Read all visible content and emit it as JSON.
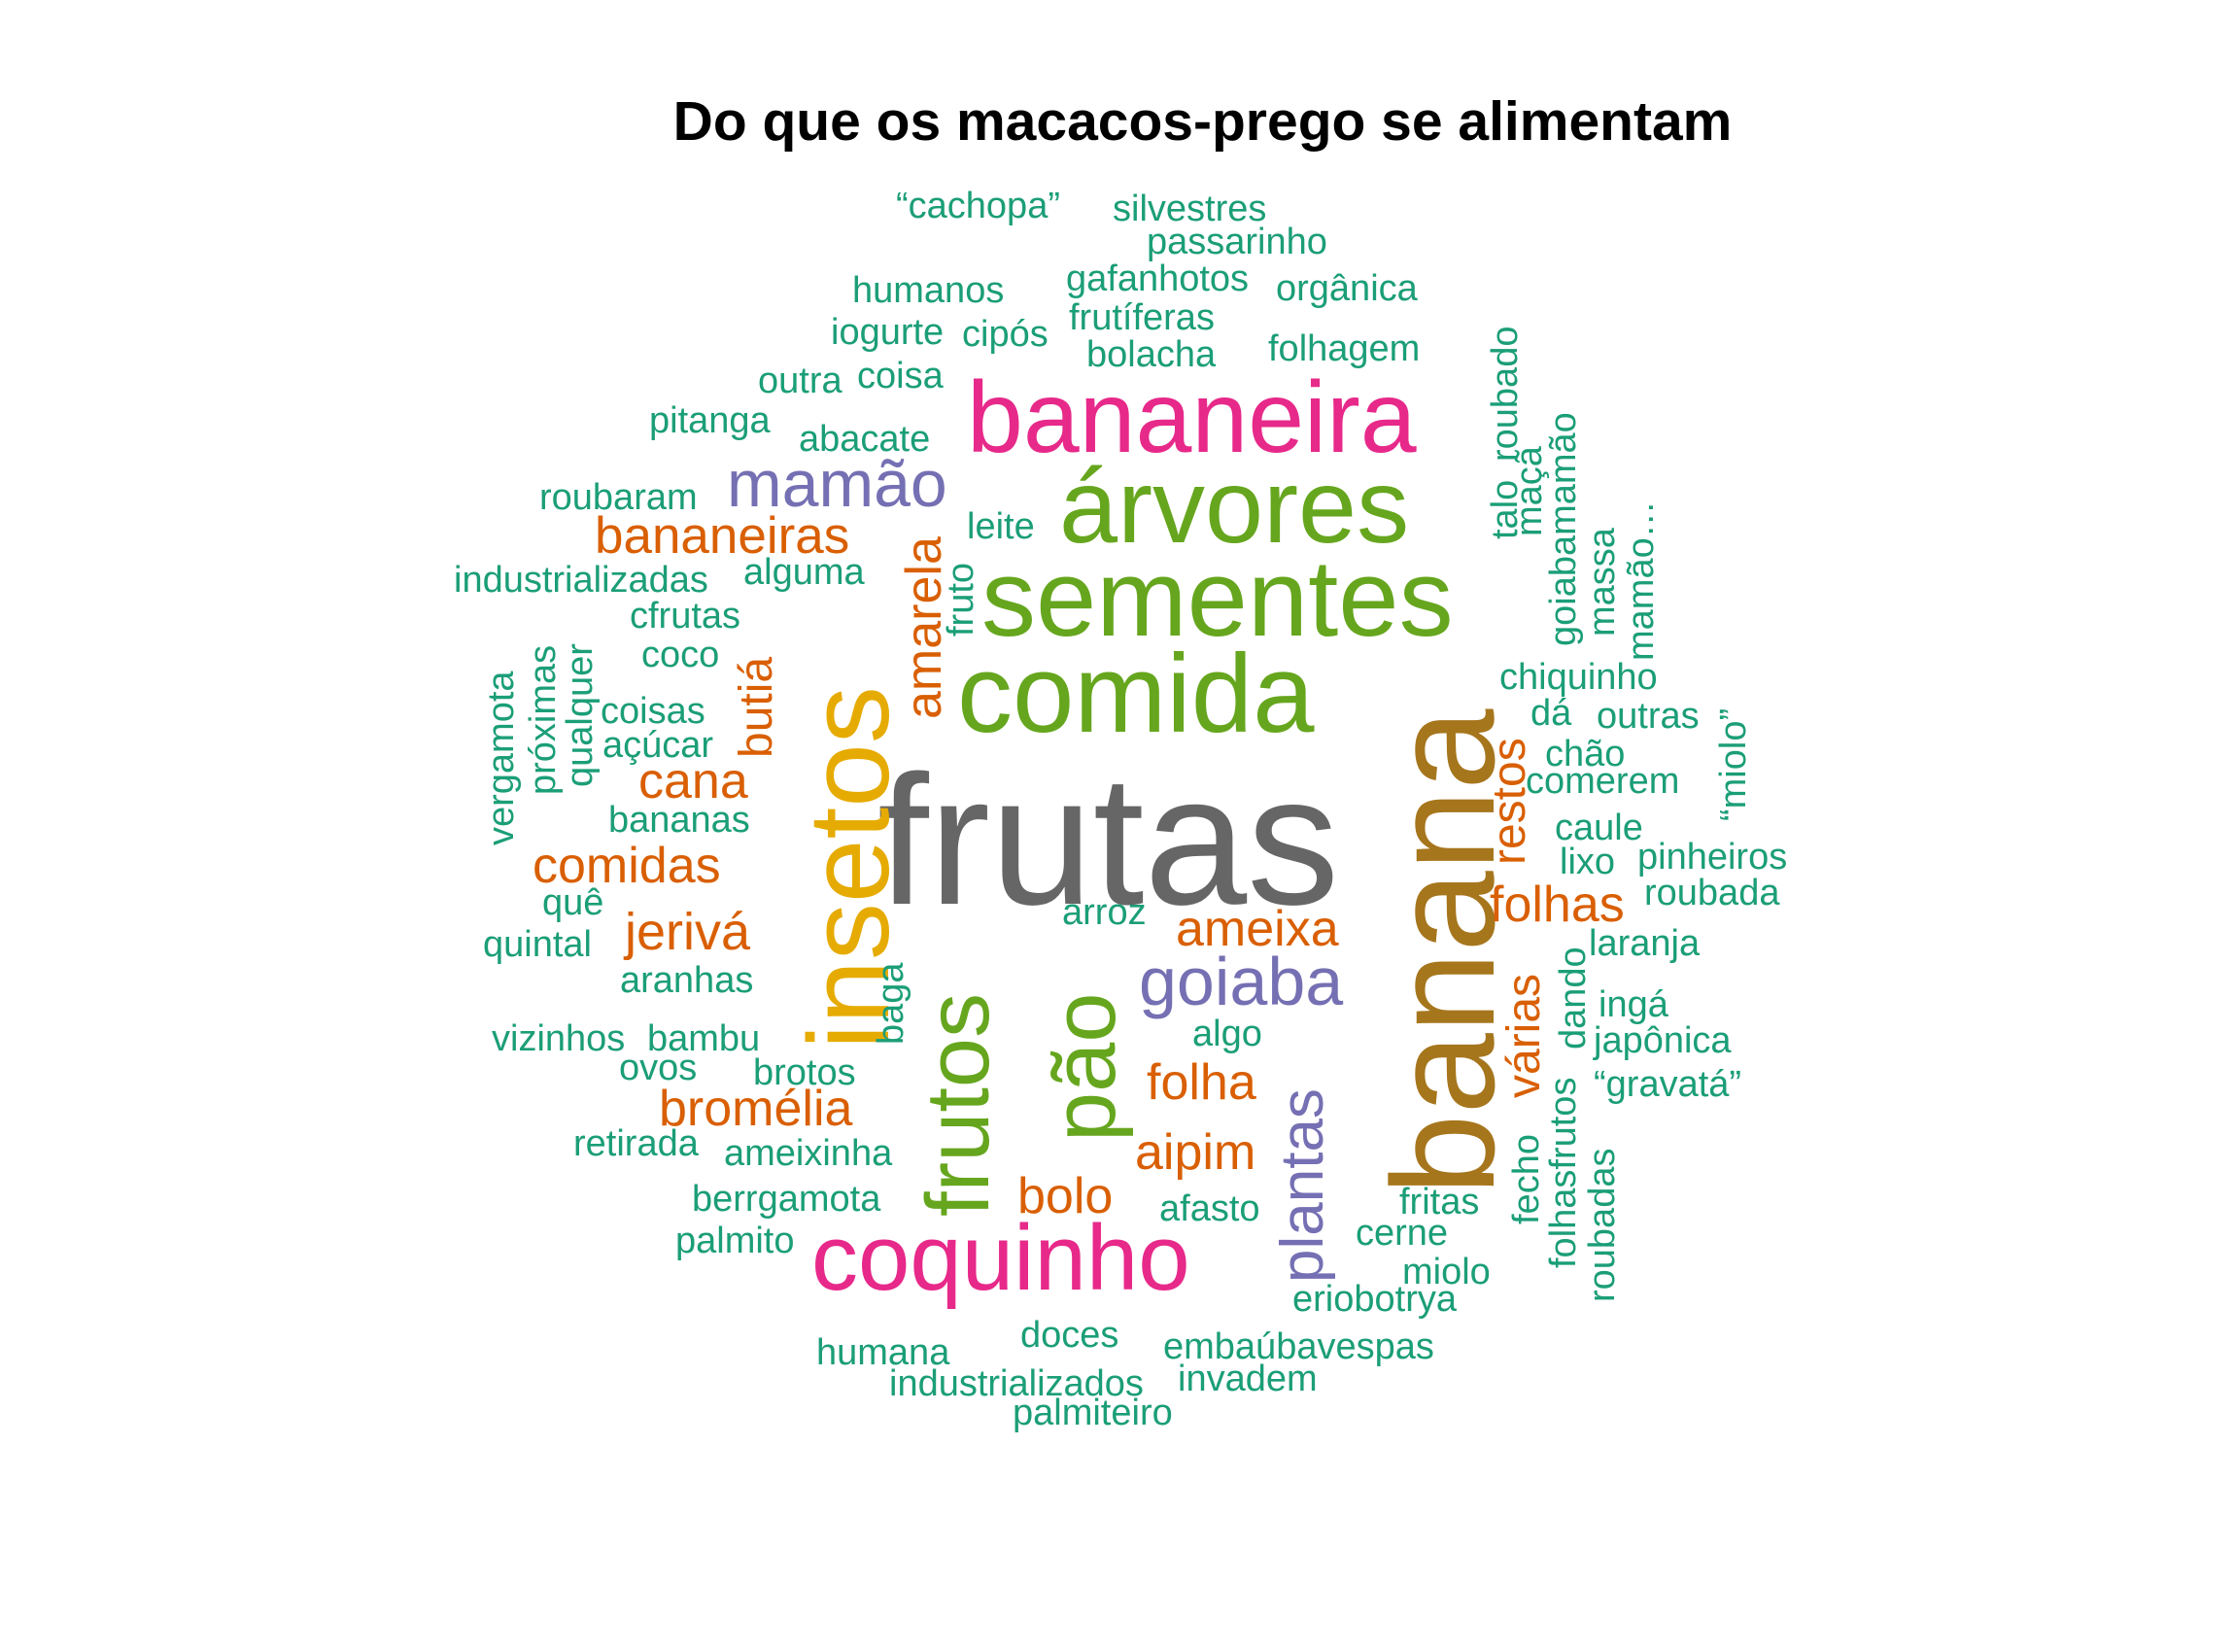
{
  "title": "Do que os macacos-prego se alimentam",
  "colors": {
    "green": "#1b9e77",
    "orange": "#d95f02",
    "purple": "#7570b3",
    "pink": "#e7298a",
    "lime": "#66a61e",
    "gold": "#e6ab02",
    "brown": "#a6761d",
    "gray": "#666666"
  },
  "words": [
    {
      "id": "frutas",
      "text": "frutas",
      "color": "gray"
    },
    {
      "id": "banana",
      "text": "banana",
      "color": "brown"
    },
    {
      "id": "insetos",
      "text": "insetos",
      "color": "gold"
    },
    {
      "id": "comida",
      "text": "comida",
      "color": "lime"
    },
    {
      "id": "sementes",
      "text": "sementes",
      "color": "lime"
    },
    {
      "id": "arvores",
      "text": "árvores",
      "color": "lime"
    },
    {
      "id": "bananeira",
      "text": "bananeira",
      "color": "pink"
    },
    {
      "id": "coquinho",
      "text": "coquinho",
      "color": "pink"
    },
    {
      "id": "frutos",
      "text": "frutos",
      "color": "lime"
    },
    {
      "id": "pao",
      "text": "pão",
      "color": "lime"
    },
    {
      "id": "mamao",
      "text": "mamão",
      "color": "purple"
    },
    {
      "id": "goiaba",
      "text": "goiaba",
      "color": "purple"
    },
    {
      "id": "plantas",
      "text": "plantas",
      "color": "purple"
    },
    {
      "id": "bananeiras",
      "text": "bananeiras",
      "color": "orange"
    },
    {
      "id": "amarela",
      "text": "amarela",
      "color": "orange"
    },
    {
      "id": "butia",
      "text": "butiá",
      "color": "orange"
    },
    {
      "id": "cana",
      "text": "cana",
      "color": "orange"
    },
    {
      "id": "comidas",
      "text": "comidas",
      "color": "orange"
    },
    {
      "id": "jeriva",
      "text": "jerivá",
      "color": "orange"
    },
    {
      "id": "ameixa",
      "text": "ameixa",
      "color": "orange"
    },
    {
      "id": "folha",
      "text": "folha",
      "color": "orange"
    },
    {
      "id": "aipim",
      "text": "aipim",
      "color": "orange"
    },
    {
      "id": "bolo",
      "text": "bolo",
      "color": "orange"
    },
    {
      "id": "bromelia",
      "text": "bromélia",
      "color": "orange"
    },
    {
      "id": "folhas",
      "text": "folhas",
      "color": "orange"
    },
    {
      "id": "restos",
      "text": "restos",
      "color": "orange"
    },
    {
      "id": "varias",
      "text": "várias",
      "color": "orange"
    },
    {
      "id": "cachopa",
      "text": "“cachopa”",
      "color": "green"
    },
    {
      "id": "silvestres",
      "text": "silvestres",
      "color": "green"
    },
    {
      "id": "passarinho",
      "text": "passarinho",
      "color": "green"
    },
    {
      "id": "humanos",
      "text": "humanos",
      "color": "green"
    },
    {
      "id": "gafanhotos",
      "text": "gafanhotos",
      "color": "green"
    },
    {
      "id": "organica",
      "text": "orgânica",
      "color": "green"
    },
    {
      "id": "frutiferas",
      "text": "frutíferas",
      "color": "green"
    },
    {
      "id": "iogurte",
      "text": "iogurte",
      "color": "green"
    },
    {
      "id": "cipos",
      "text": "cipós",
      "color": "green"
    },
    {
      "id": "bolacha",
      "text": "bolacha",
      "color": "green"
    },
    {
      "id": "folhagem",
      "text": "folhagem",
      "color": "green"
    },
    {
      "id": "outra",
      "text": "outra",
      "color": "green"
    },
    {
      "id": "coisa",
      "text": "coisa",
      "color": "green"
    },
    {
      "id": "pitanga",
      "text": "pitanga",
      "color": "green"
    },
    {
      "id": "abacate",
      "text": "abacate",
      "color": "green"
    },
    {
      "id": "roubaram",
      "text": "roubaram",
      "color": "green"
    },
    {
      "id": "leite",
      "text": "leite",
      "color": "green"
    },
    {
      "id": "industrializadas",
      "text": "industrializadas",
      "color": "green"
    },
    {
      "id": "alguma",
      "text": "alguma",
      "color": "green"
    },
    {
      "id": "cfrutas",
      "text": "cfrutas",
      "color": "green"
    },
    {
      "id": "coco",
      "text": "coco",
      "color": "green"
    },
    {
      "id": "coisas",
      "text": "coisas",
      "color": "green"
    },
    {
      "id": "acucar",
      "text": "açúcar",
      "color": "green"
    },
    {
      "id": "bananas",
      "text": "bananas",
      "color": "green"
    },
    {
      "id": "que",
      "text": "quê",
      "color": "green"
    },
    {
      "id": "quintal",
      "text": "quintal",
      "color": "green"
    },
    {
      "id": "aranhas",
      "text": "aranhas",
      "color": "green"
    },
    {
      "id": "vizinhos",
      "text": "vizinhos",
      "color": "green"
    },
    {
      "id": "bambu",
      "text": "bambu",
      "color": "green"
    },
    {
      "id": "ovos",
      "text": "ovos",
      "color": "green"
    },
    {
      "id": "brotos",
      "text": "brotos",
      "color": "green"
    },
    {
      "id": "retirada",
      "text": "retirada",
      "color": "green"
    },
    {
      "id": "ameixinha",
      "text": "ameixinha",
      "color": "green"
    },
    {
      "id": "berrgamota",
      "text": "berrgamota",
      "color": "green"
    },
    {
      "id": "palmito",
      "text": "palmito",
      "color": "green"
    },
    {
      "id": "humana",
      "text": "humana",
      "color": "green"
    },
    {
      "id": "doces",
      "text": "doces",
      "color": "green"
    },
    {
      "id": "industrializados",
      "text": "industrializados",
      "color": "green"
    },
    {
      "id": "palmiteiro",
      "text": "palmiteiro",
      "color": "green"
    },
    {
      "id": "invadem",
      "text": "invadem",
      "color": "green"
    },
    {
      "id": "embaubavespas",
      "text": "embaúbavespas",
      "color": "green"
    },
    {
      "id": "eriobotrya",
      "text": "eriobotrya",
      "color": "green"
    },
    {
      "id": "miolo",
      "text": "miolo",
      "color": "green"
    },
    {
      "id": "cerne",
      "text": "cerne",
      "color": "green"
    },
    {
      "id": "fritas",
      "text": "fritas",
      "color": "green"
    },
    {
      "id": "afasto",
      "text": "afasto",
      "color": "green"
    },
    {
      "id": "algo",
      "text": "algo",
      "color": "green"
    },
    {
      "id": "arroz",
      "text": "arroz",
      "color": "green"
    },
    {
      "id": "chiquinho",
      "text": "chiquinho",
      "color": "green"
    },
    {
      "id": "da",
      "text": "dá",
      "color": "green"
    },
    {
      "id": "outras",
      "text": "outras",
      "color": "green"
    },
    {
      "id": "chao",
      "text": "chão",
      "color": "green"
    },
    {
      "id": "comerem",
      "text": "comerem",
      "color": "green"
    },
    {
      "id": "caule",
      "text": "caule",
      "color": "green"
    },
    {
      "id": "lixo",
      "text": "lixo",
      "color": "green"
    },
    {
      "id": "pinheiros",
      "text": "pinheiros",
      "color": "green"
    },
    {
      "id": "roubada",
      "text": "roubada",
      "color": "green"
    },
    {
      "id": "laranja",
      "text": "laranja",
      "color": "green"
    },
    {
      "id": "inga",
      "text": "ingá",
      "color": "green"
    },
    {
      "id": "japonica",
      "text": "japônica",
      "color": "green"
    },
    {
      "id": "gravata",
      "text": "“gravatá”",
      "color": "green"
    },
    {
      "id": "vergamota",
      "text": "vergamota",
      "color": "green"
    },
    {
      "id": "proximas",
      "text": "próximas",
      "color": "green"
    },
    {
      "id": "qualquer",
      "text": "qualquer",
      "color": "green"
    },
    {
      "id": "fruto",
      "text": "fruto",
      "color": "green"
    },
    {
      "id": "baga",
      "text": "baga",
      "color": "green"
    },
    {
      "id": "roubado",
      "text": "roubado",
      "color": "green"
    },
    {
      "id": "talo",
      "text": "talo",
      "color": "green"
    },
    {
      "id": "maca",
      "text": "maçã",
      "color": "green"
    },
    {
      "id": "goiabamamao",
      "text": "goiabamamão",
      "color": "green"
    },
    {
      "id": "massa",
      "text": "massa",
      "color": "green"
    },
    {
      "id": "mamao_ellipsis",
      "text": "mamão…",
      "color": "green"
    },
    {
      "id": "miolo_quoted",
      "text": "“miolo”",
      "color": "green"
    },
    {
      "id": "dando",
      "text": "dando",
      "color": "green"
    },
    {
      "id": "fecho",
      "text": "fecho",
      "color": "green"
    },
    {
      "id": "folhasfrutos",
      "text": "folhasfrutos",
      "color": "green"
    },
    {
      "id": "roubadas",
      "text": "roubadas",
      "color": "green"
    }
  ]
}
